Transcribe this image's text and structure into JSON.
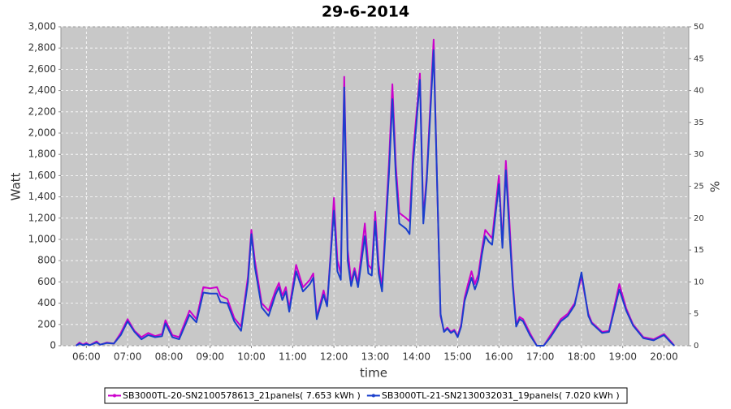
{
  "chart_data": {
    "type": "line",
    "title": "29-6-2014",
    "x_label": "time",
    "y_label": "Watt",
    "y2_label": "%",
    "x": [
      "05:45",
      "05:50",
      "05:55",
      "06:00",
      "06:05",
      "06:15",
      "06:20",
      "06:30",
      "06:40",
      "06:50",
      "07:00",
      "07:10",
      "07:20",
      "07:30",
      "07:40",
      "07:50",
      "07:55",
      "08:05",
      "08:15",
      "08:30",
      "08:40",
      "08:50",
      "09:00",
      "09:10",
      "09:15",
      "09:25",
      "09:35",
      "09:45",
      "09:55",
      "10:00",
      "10:05",
      "10:15",
      "10:25",
      "10:35",
      "10:40",
      "10:45",
      "10:50",
      "10:55",
      "11:05",
      "11:15",
      "11:25",
      "11:30",
      "11:35",
      "11:45",
      "11:50",
      "11:55",
      "12:00",
      "12:05",
      "12:10",
      "12:15",
      "12:20",
      "12:25",
      "12:30",
      "12:35",
      "12:45",
      "12:50",
      "12:55",
      "13:00",
      "13:05",
      "13:10",
      "13:20",
      "13:25",
      "13:30",
      "13:35",
      "13:45",
      "13:50",
      "13:55",
      "14:05",
      "14:10",
      "14:15",
      "14:25",
      "14:30",
      "14:35",
      "14:40",
      "14:45",
      "14:50",
      "14:55",
      "15:00",
      "15:05",
      "15:10",
      "15:15",
      "15:20",
      "15:25",
      "15:30",
      "15:35",
      "15:40",
      "15:45",
      "15:50",
      "16:00",
      "16:05",
      "16:10",
      "16:15",
      "16:20",
      "16:25",
      "16:30",
      "16:35",
      "16:45",
      "16:55",
      "17:05",
      "17:15",
      "17:30",
      "17:40",
      "17:50",
      "18:00",
      "18:10",
      "18:15",
      "18:30",
      "18:40",
      "18:55",
      "19:05",
      "19:15",
      "19:30",
      "19:45",
      "20:00",
      "20:10",
      "20:15"
    ],
    "series": [
      {
        "name": "SB3000TL-20-SN2100578613_21panels( 7.653 kWh )",
        "color": "#cc00cc",
        "values": [
          0,
          30,
          10,
          25,
          5,
          40,
          10,
          30,
          20,
          120,
          250,
          140,
          80,
          120,
          90,
          110,
          240,
          100,
          80,
          330,
          250,
          550,
          540,
          550,
          470,
          440,
          260,
          180,
          650,
          1090,
          800,
          400,
          330,
          520,
          590,
          470,
          550,
          350,
          760,
          550,
          620,
          680,
          270,
          520,
          380,
          850,
          1390,
          800,
          680,
          2530,
          900,
          600,
          730,
          590,
          1150,
          760,
          720,
          1260,
          760,
          560,
          1720,
          2460,
          1700,
          1250,
          1200,
          1170,
          1800,
          2560,
          1200,
          1600,
          2880,
          1550,
          280,
          140,
          170,
          130,
          150,
          90,
          200,
          450,
          580,
          700,
          580,
          670,
          900,
          1090,
          1050,
          1010,
          1600,
          950,
          1740,
          1200,
          600,
          200,
          270,
          250,
          120,
          0,
          0,
          100,
          250,
          300,
          400,
          650,
          300,
          220,
          130,
          140,
          580,
          350,
          200,
          80,
          60,
          110,
          40,
          0
        ]
      },
      {
        "name": "SB3000TL-21-SN2130032031_19panels( 7.020 kWh )",
        "color": "#1a3fcc",
        "values": [
          0,
          20,
          5,
          15,
          5,
          30,
          10,
          25,
          20,
          100,
          230,
          130,
          60,
          100,
          80,
          90,
          210,
          80,
          60,
          290,
          220,
          500,
          490,
          490,
          410,
          400,
          230,
          140,
          600,
          1050,
          740,
          360,
          280,
          480,
          550,
          430,
          510,
          320,
          700,
          510,
          580,
          640,
          250,
          480,
          370,
          820,
          1270,
          700,
          620,
          2430,
          800,
          560,
          700,
          550,
          1030,
          680,
          660,
          1170,
          680,
          510,
          1620,
          2320,
          1600,
          1150,
          1100,
          1050,
          1700,
          2500,
          1150,
          1550,
          2780,
          1550,
          300,
          130,
          160,
          120,
          140,
          80,
          180,
          420,
          530,
          640,
          530,
          620,
          850,
          1030,
          980,
          950,
          1520,
          920,
          1650,
          1100,
          560,
          180,
          250,
          230,
          100,
          0,
          0,
          80,
          230,
          280,
          380,
          690,
          280,
          210,
          120,
          130,
          530,
          330,
          190,
          70,
          50,
          100,
          30,
          0
        ]
      }
    ],
    "xlim": [
      "05:23",
      "20:36"
    ],
    "xticks": [
      "06:00",
      "07:00",
      "08:00",
      "09:00",
      "10:00",
      "11:00",
      "12:00",
      "13:00",
      "14:00",
      "15:00",
      "16:00",
      "17:00",
      "18:00",
      "19:00",
      "20:00"
    ],
    "ylim": [
      0,
      3000
    ],
    "yticks": [
      0,
      200,
      400,
      600,
      800,
      {
        "value": 1000,
        "label": "1,000"
      },
      {
        "value": 1200,
        "label": "1,200"
      },
      {
        "value": 1400,
        "label": "1,400"
      },
      {
        "value": 1600,
        "label": "1,600"
      },
      {
        "value": 1800,
        "label": "1,800"
      },
      {
        "value": 2000,
        "label": "2,000"
      },
      {
        "value": 2200,
        "label": "2,200"
      },
      {
        "value": 2400,
        "label": "2,400"
      },
      {
        "value": 2600,
        "label": "2,600"
      },
      {
        "value": 2800,
        "label": "2,800"
      },
      {
        "value": 3000,
        "label": "3,000"
      }
    ],
    "y2lim": [
      0,
      50
    ],
    "y2ticks": [
      0,
      5,
      10,
      15,
      20,
      25,
      30,
      35,
      40,
      45,
      50
    ],
    "grid": true,
    "legend": "bottom"
  }
}
